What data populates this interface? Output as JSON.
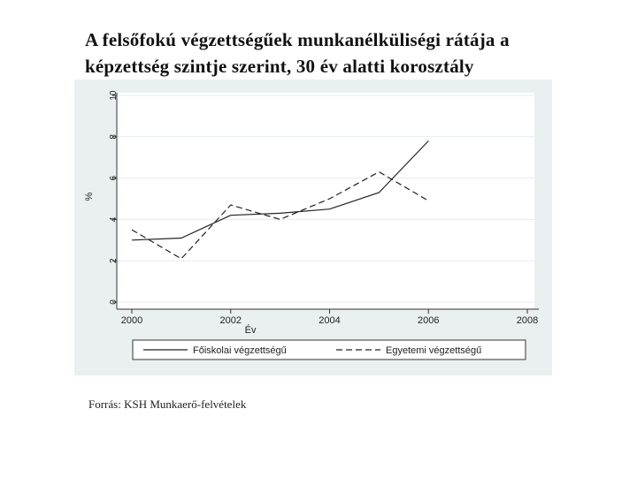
{
  "title": {
    "line1": "A felsőfokú végzettségűek munkanélküliségi rátája a",
    "line2": "képzettség szintje szerint,  30 év alatti korosztály"
  },
  "source": "Forrás: KSH Munkaerő-felvételek",
  "chart_data": {
    "type": "line",
    "xlabel": "Év",
    "ylabel": "%",
    "xlim": [
      2000,
      2008
    ],
    "ylim": [
      0,
      10
    ],
    "xticks": [
      2000,
      2002,
      2004,
      2006,
      2008
    ],
    "yticks": [
      0,
      2,
      4,
      6,
      8,
      10
    ],
    "grid": true,
    "legend_position": "bottom",
    "series": [
      {
        "name": "Főiskolai végzettségű",
        "style": "solid",
        "color": "#222222",
        "x": [
          2000,
          2001,
          2002,
          2003,
          2004,
          2005,
          2006
        ],
        "y": [
          3.0,
          3.1,
          4.2,
          4.3,
          4.5,
          5.3,
          7.8
        ]
      },
      {
        "name": "Egyetemi végzettségű",
        "style": "dashed",
        "color": "#222222",
        "x": [
          2000,
          2001,
          2002,
          2003,
          2004,
          2005,
          2006
        ],
        "y": [
          3.5,
          2.1,
          4.7,
          4.0,
          5.0,
          6.3,
          4.9
        ]
      }
    ]
  }
}
